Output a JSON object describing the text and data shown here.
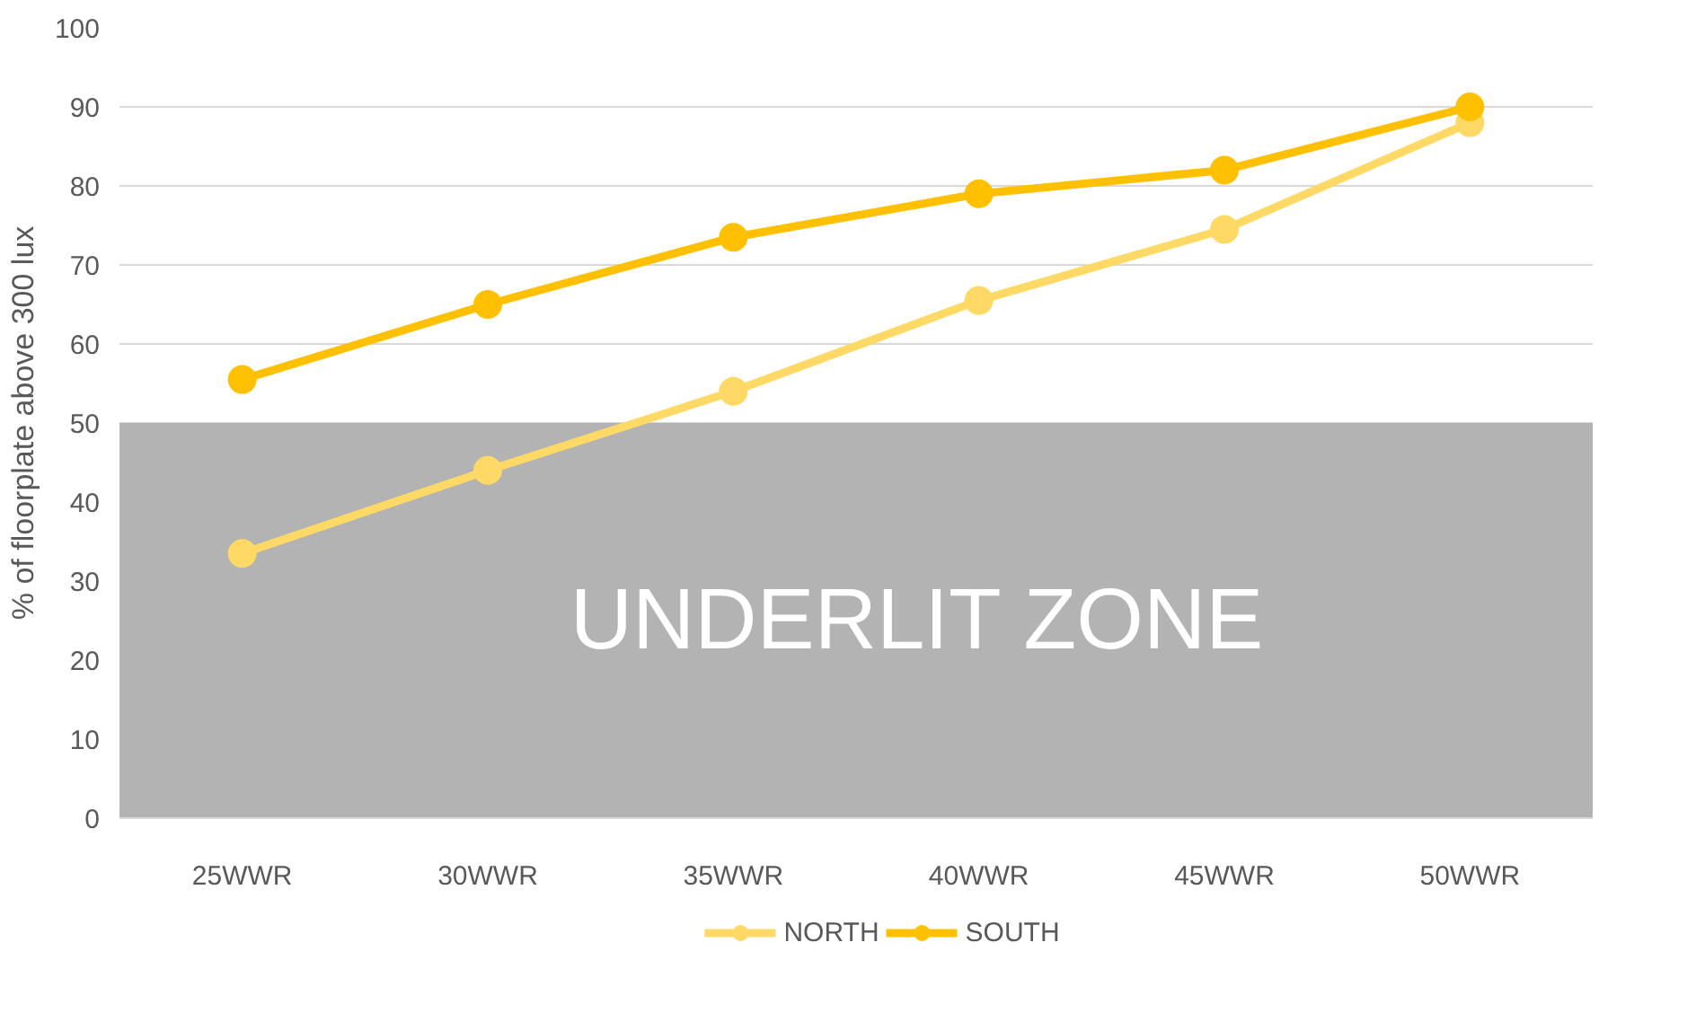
{
  "chart_data": {
    "type": "line",
    "ylabel": "% of floorplate above 300 lux",
    "categories": [
      "25WWR",
      "30WWR",
      "35WWR",
      "40WWR",
      "45WWR",
      "50WWR"
    ],
    "series": [
      {
        "name": "NORTH",
        "color": "#ffd966",
        "values": [
          33.5,
          44,
          54,
          65.5,
          74.5,
          88
        ]
      },
      {
        "name": "SOUTH",
        "color": "#ffc000",
        "values": [
          55.5,
          65,
          73.5,
          79,
          82,
          90
        ]
      }
    ],
    "ylim": [
      0,
      100
    ],
    "yticks": [
      0,
      10,
      20,
      30,
      40,
      50,
      60,
      70,
      80,
      90,
      100
    ],
    "bands": [
      {
        "axis": "y",
        "from": 0,
        "to": 50,
        "label": "UNDERLIT ZONE",
        "color": "#b3b3b3"
      }
    ],
    "grid": "y",
    "legend": "bottom",
    "marker": "circle",
    "line_style": "solid"
  }
}
